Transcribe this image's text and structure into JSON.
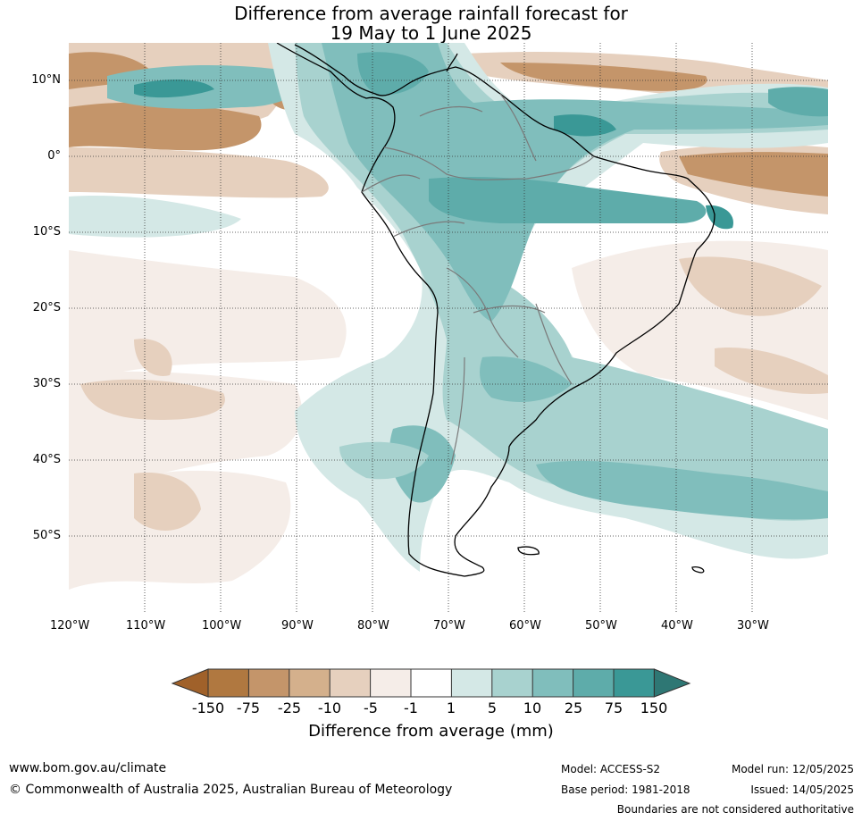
{
  "title": {
    "line1": "Difference from average rainfall forecast for",
    "line2": "19 May to 1 June 2025"
  },
  "map": {
    "lat_labels": [
      "10°N",
      "0°",
      "10°S",
      "20°S",
      "30°S",
      "40°S",
      "50°S"
    ],
    "lon_labels": [
      "120°W",
      "110°W",
      "100°W",
      "90°W",
      "80°W",
      "70°W",
      "60°W",
      "50°W",
      "40°W",
      "30°W"
    ],
    "extent": {
      "lon_min": -120,
      "lon_max": -20,
      "lat_min": -60,
      "lat_max": 15
    },
    "gridlines": true
  },
  "colorbar": {
    "title": "Difference from average (mm)",
    "boundaries": [
      "-150",
      "-75",
      "-25",
      "-10",
      "-5",
      "-1",
      "1",
      "5",
      "10",
      "25",
      "75",
      "150"
    ],
    "colors": [
      "#a0612a",
      "#b07840",
      "#c4956a",
      "#d4b08c",
      "#e6d0be",
      "#f5ede8",
      "#ffffff",
      "#d4e8e6",
      "#a8d2cf",
      "#80bebc",
      "#5eacaa",
      "#3a9896",
      "#2e7774"
    ],
    "extend": "both"
  },
  "footer": {
    "website": "www.bom.gov.au/climate",
    "copyright": "© Commonwealth of Australia 2025, Australian Bureau of Meteorology",
    "model": "Model: ACCESS-S2",
    "base_period": "Base period: 1981-2018",
    "model_run": "Model run: 12/05/2025",
    "issued": "Issued: 14/05/2025",
    "disclaimer": "Boundaries are not considered authoritative"
  }
}
